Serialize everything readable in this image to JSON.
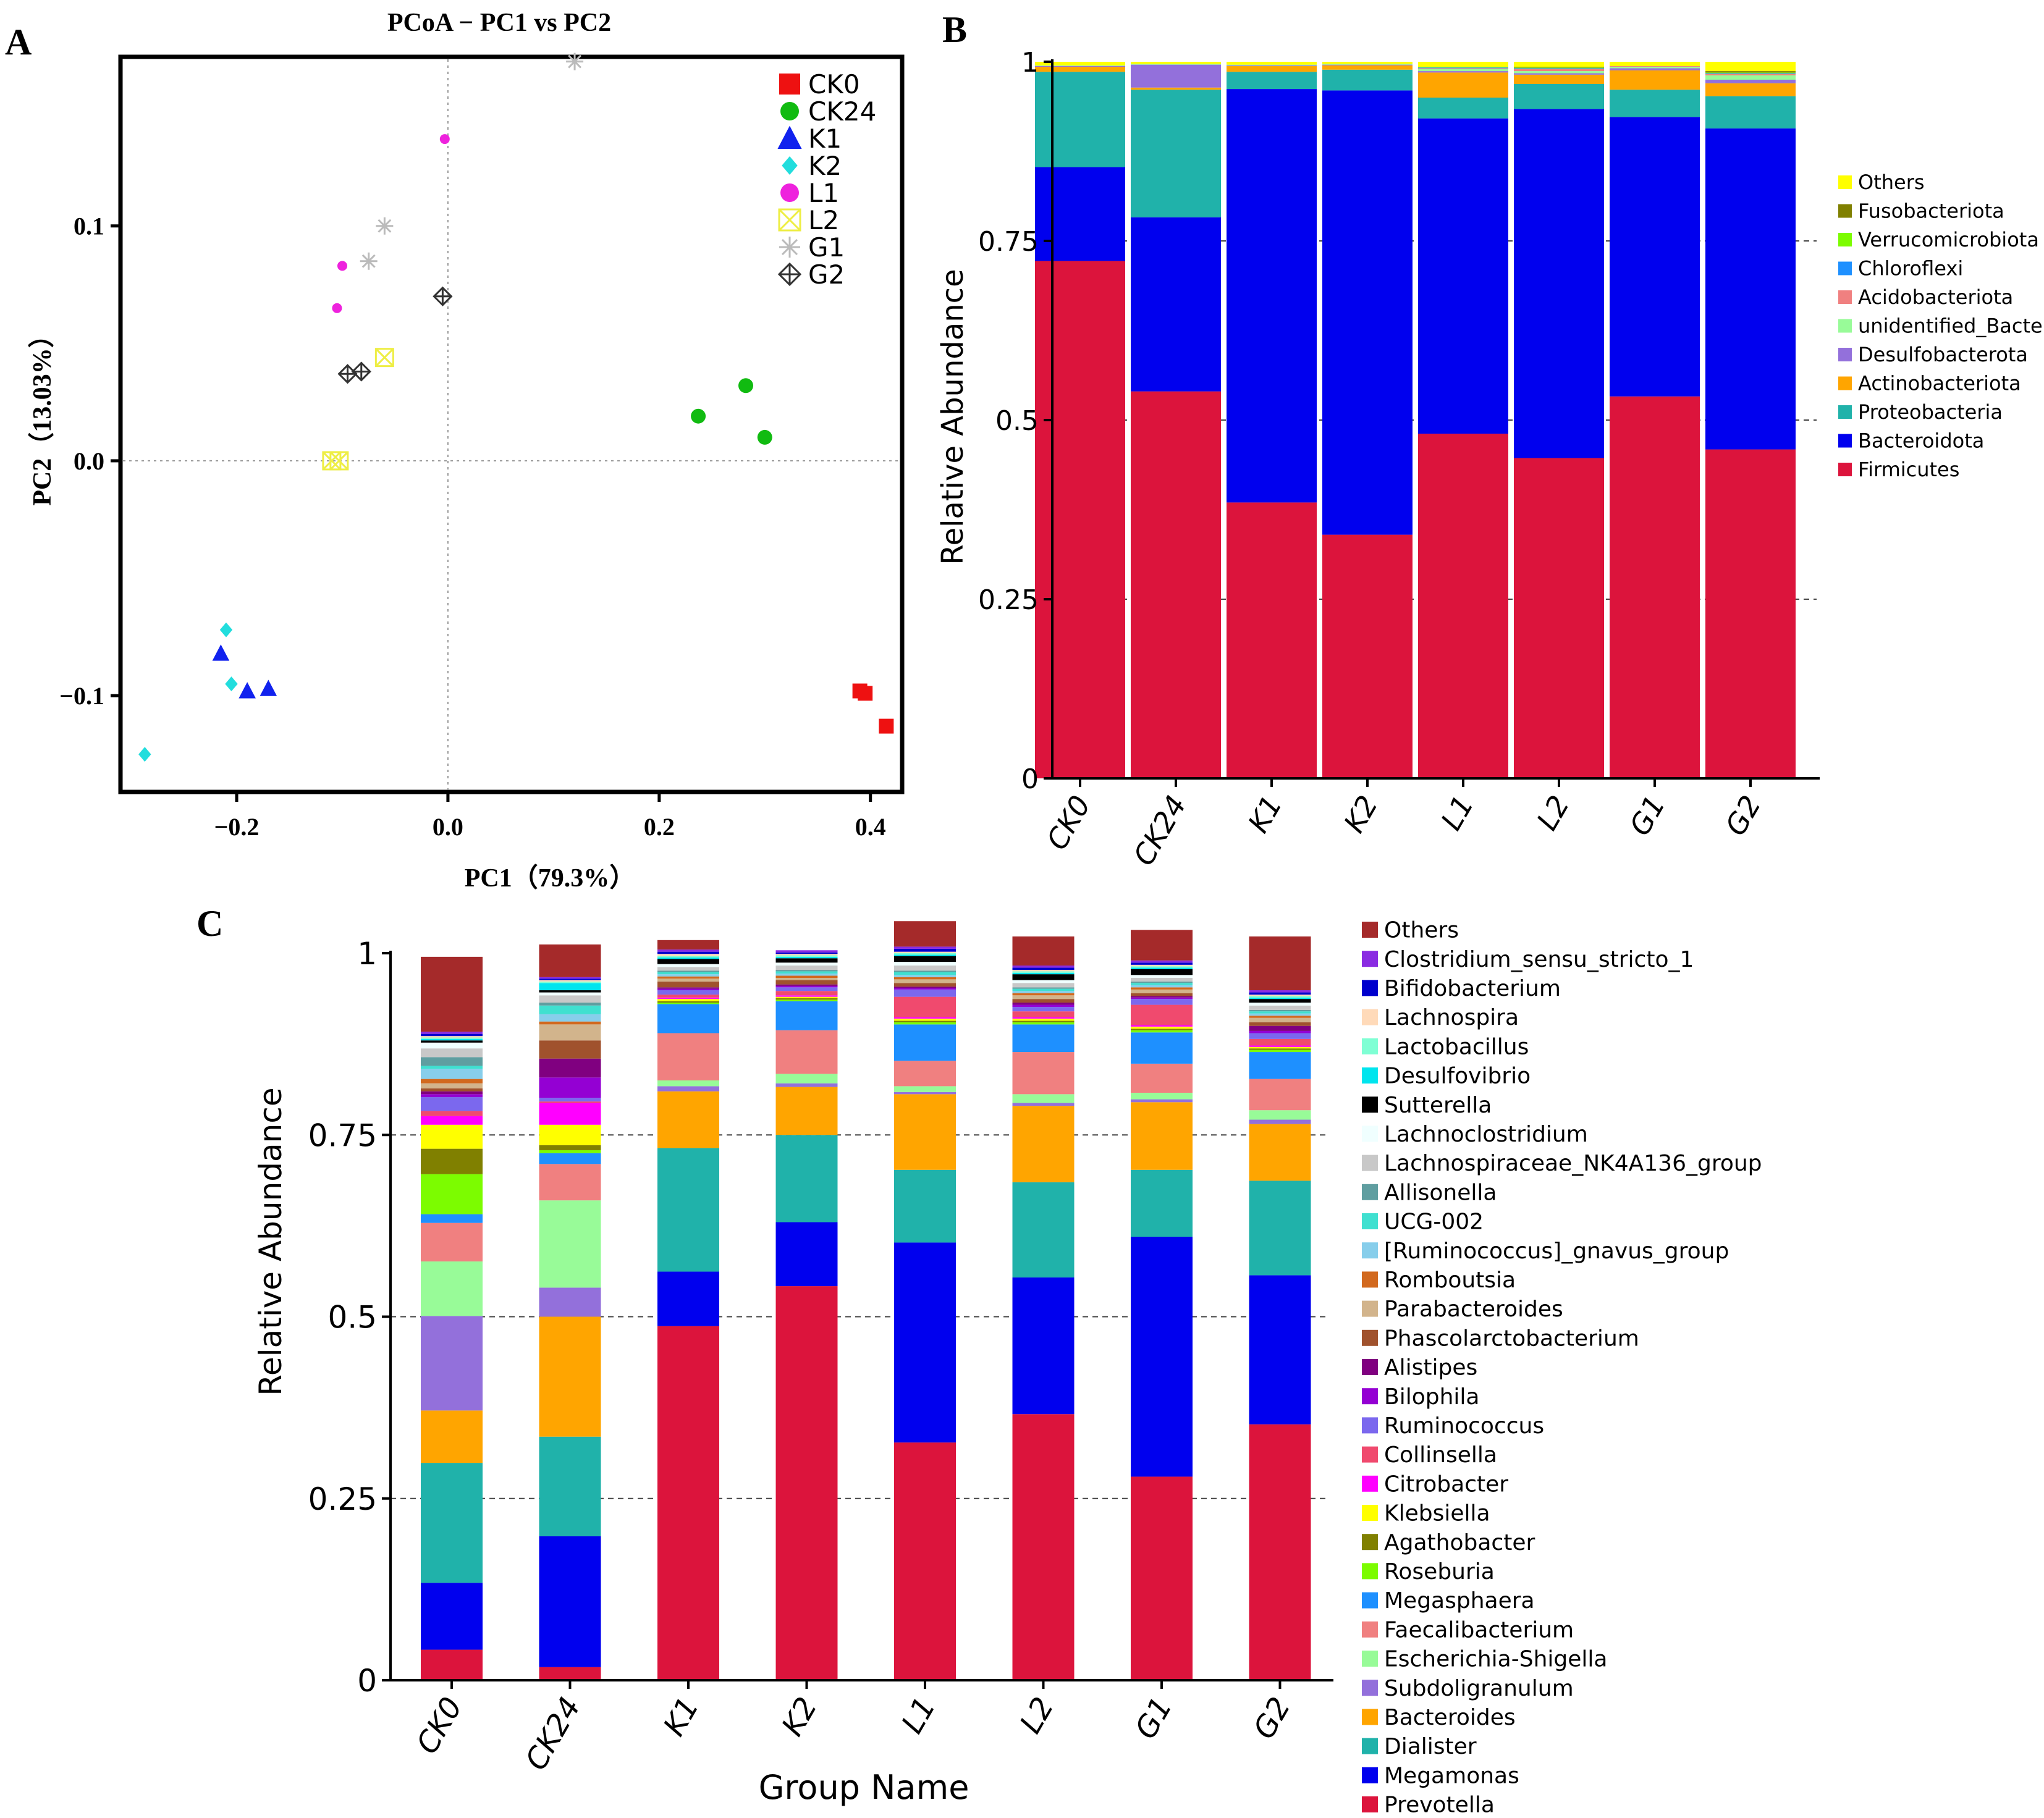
{
  "panels": {
    "a": "A",
    "b": "B",
    "c": "C"
  },
  "chart_data": [
    {
      "type": "scatter",
      "title": "PCoA − PC1 vs PC2",
      "xlabel": "PC1（79.3%）",
      "ylabel": "PC2（13.03%）",
      "xlim": [
        -0.31,
        0.43
      ],
      "ylim": [
        -0.141,
        0.172
      ],
      "xticks": [
        -0.2,
        0.0,
        0.2,
        0.4
      ],
      "xtick_labels": [
        "−0.2",
        "0.0",
        "0.2",
        "0.4"
      ],
      "yticks": [
        -0.1,
        0.0,
        0.1
      ],
      "ytick_labels": [
        "−0.1",
        "0.0",
        "0.1"
      ],
      "legend_position": "top-right",
      "series": [
        {
          "name": "CK0",
          "marker": "square",
          "color": "#ee1111",
          "points": [
            [
              0.39,
              -0.098
            ],
            [
              0.395,
              -0.099
            ],
            [
              0.415,
              -0.113
            ]
          ]
        },
        {
          "name": "CK24",
          "marker": "circle",
          "color": "#11bb11",
          "points": [
            [
              0.237,
              0.019
            ],
            [
              0.282,
              0.032
            ],
            [
              0.3,
              0.01
            ]
          ]
        },
        {
          "name": "K1",
          "marker": "triangle",
          "color": "#1122ee",
          "points": [
            [
              -0.215,
              -0.082
            ],
            [
              -0.19,
              -0.098
            ],
            [
              -0.17,
              -0.097
            ]
          ]
        },
        {
          "name": "K2",
          "marker": "diamond",
          "color": "#22dddd",
          "points": [
            [
              -0.21,
              -0.072
            ],
            [
              -0.205,
              -0.095
            ],
            [
              -0.287,
              -0.125
            ]
          ]
        },
        {
          "name": "L1",
          "marker": "circle",
          "color": "#ee22dd",
          "points": [
            [
              -0.003,
              0.137
            ],
            [
              -0.1,
              0.083
            ],
            [
              -0.105,
              0.065
            ]
          ]
        },
        {
          "name": "L2",
          "marker": "boxx",
          "color": "#eeee44",
          "points": [
            [
              -0.06,
              0.044
            ],
            [
              -0.11,
              0.0
            ],
            [
              -0.103,
              0.0
            ]
          ]
        },
        {
          "name": "G1",
          "marker": "star",
          "color": "#bbbbbb",
          "points": [
            [
              0.12,
              0.17
            ],
            [
              -0.06,
              0.1
            ],
            [
              -0.075,
              0.085
            ]
          ]
        },
        {
          "name": "G2",
          "marker": "diamondplus",
          "color": "#333333",
          "points": [
            [
              -0.005,
              0.07
            ],
            [
              -0.095,
              0.037
            ],
            [
              -0.082,
              0.038
            ]
          ]
        }
      ]
    },
    {
      "type": "bar",
      "stacked": true,
      "ylabel": "Relative Abundance",
      "ylim": [
        0,
        1
      ],
      "yticks": [
        0,
        0.25,
        0.5,
        0.75,
        1
      ],
      "ytick_labels": [
        "0",
        "0.25",
        "0.5",
        "0.75",
        "1"
      ],
      "categories": [
        "CK0",
        "CK24",
        "K1",
        "K2",
        "L1",
        "L2",
        "G1",
        "G2"
      ],
      "series": [
        {
          "name": "Firmicutes",
          "color": "#dc143c",
          "values": [
            0.722,
            0.54,
            0.385,
            0.34,
            0.481,
            0.447,
            0.533,
            0.459
          ]
        },
        {
          "name": "Bacteroidota",
          "color": "#0000ee",
          "values": [
            0.131,
            0.243,
            0.577,
            0.62,
            0.44,
            0.487,
            0.39,
            0.448
          ]
        },
        {
          "name": "Proteobacteria",
          "color": "#20b2aa",
          "values": [
            0.133,
            0.178,
            0.024,
            0.029,
            0.029,
            0.035,
            0.038,
            0.045
          ]
        },
        {
          "name": "Actinobacteriota",
          "color": "#ffa500",
          "values": [
            0.007,
            0.003,
            0.008,
            0.006,
            0.035,
            0.013,
            0.027,
            0.018
          ]
        },
        {
          "name": "Desulfobacterota",
          "color": "#9370db",
          "values": [
            0.001,
            0.032,
            0.001,
            0.001,
            0.002,
            0.002,
            0.003,
            0.005
          ]
        },
        {
          "name": "unidentified_Bacteria",
          "color": "#98fb98",
          "values": [
            0.001,
            0.001,
            0.001,
            0.001,
            0.003,
            0.003,
            0.002,
            0.006
          ]
        },
        {
          "name": "Acidobacteriota",
          "color": "#f08080",
          "values": [
            0.0,
            0.0,
            0.0,
            0.0,
            0.001,
            0.003,
            0.001,
            0.002
          ]
        },
        {
          "name": "Chloroflexi",
          "color": "#1e90ff",
          "values": [
            0.0,
            0.0,
            0.0,
            0.0,
            0.001,
            0.001,
            0.0,
            0.001
          ]
        },
        {
          "name": "Verrucomicrobiota",
          "color": "#7cfc00",
          "values": [
            0.0,
            0.0,
            0.0,
            0.0,
            0.001,
            0.001,
            0.0,
            0.001
          ]
        },
        {
          "name": "Fusobacteriota",
          "color": "#808000",
          "values": [
            0.0,
            0.0,
            0.0,
            0.0,
            0.0,
            0.001,
            0.0,
            0.002
          ]
        },
        {
          "name": "Others",
          "color": "#ffff00",
          "values": [
            0.005,
            0.003,
            0.004,
            0.003,
            0.007,
            0.007,
            0.006,
            0.013
          ]
        }
      ]
    },
    {
      "type": "bar",
      "stacked": true,
      "ylabel": "Relative Abundance",
      "xlabel": "Group Name",
      "ylim": [
        0,
        1
      ],
      "yticks": [
        0,
        0.25,
        0.5,
        0.75,
        1
      ],
      "ytick_labels": [
        "0",
        "0.25",
        "0.5",
        "0.75",
        "1"
      ],
      "categories": [
        "CK0",
        "CK24",
        "K1",
        "K2",
        "L1",
        "L2",
        "G1",
        "G2"
      ],
      "series": [
        {
          "name": "Prevotella",
          "color": "#dc143c",
          "values": [
            0.042,
            0.018,
            0.487,
            0.542,
            0.327,
            0.366,
            0.28,
            0.352
          ]
        },
        {
          "name": "Megamonas",
          "color": "#0000ee",
          "values": [
            0.092,
            0.18,
            0.075,
            0.088,
            0.275,
            0.188,
            0.33,
            0.205
          ]
        },
        {
          "name": "Dialister",
          "color": "#20b2aa",
          "values": [
            0.165,
            0.137,
            0.17,
            0.12,
            0.1,
            0.131,
            0.092,
            0.13
          ]
        },
        {
          "name": "Bacteroides",
          "color": "#ffa500",
          "values": [
            0.072,
            0.165,
            0.078,
            0.066,
            0.104,
            0.105,
            0.093,
            0.078
          ]
        },
        {
          "name": "Subdoligranulum",
          "color": "#9370db",
          "values": [
            0.13,
            0.04,
            0.007,
            0.005,
            0.003,
            0.004,
            0.004,
            0.006
          ]
        },
        {
          "name": "Escherichia-Shigella",
          "color": "#98fb98",
          "values": [
            0.075,
            0.12,
            0.008,
            0.013,
            0.008,
            0.012,
            0.009,
            0.013
          ]
        },
        {
          "name": "Faecalibacterium",
          "color": "#f08080",
          "values": [
            0.053,
            0.05,
            0.065,
            0.06,
            0.035,
            0.058,
            0.04,
            0.043
          ]
        },
        {
          "name": "Megasphaera",
          "color": "#1e90ff",
          "values": [
            0.012,
            0.015,
            0.04,
            0.04,
            0.05,
            0.038,
            0.043,
            0.037
          ]
        },
        {
          "name": "Roseburia",
          "color": "#7cfc00",
          "values": [
            0.055,
            0.004,
            0.002,
            0.002,
            0.003,
            0.003,
            0.003,
            0.003
          ]
        },
        {
          "name": "Agathobacter",
          "color": "#808000",
          "values": [
            0.035,
            0.007,
            0.002,
            0.002,
            0.002,
            0.002,
            0.002,
            0.002
          ]
        },
        {
          "name": "Klebsiella",
          "color": "#ffff00",
          "values": [
            0.033,
            0.028,
            0.003,
            0.002,
            0.003,
            0.003,
            0.003,
            0.002
          ]
        },
        {
          "name": "Citrobacter",
          "color": "#ff00ff",
          "values": [
            0.012,
            0.03,
            0.002,
            0.002,
            0.002,
            0.002,
            0.002,
            0.002
          ]
        },
        {
          "name": "Collinsella",
          "color": "#f04a6e",
          "values": [
            0.007,
            0.002,
            0.004,
            0.006,
            0.028,
            0.008,
            0.028,
            0.009
          ]
        },
        {
          "name": "Ruminococcus",
          "color": "#7b68ee",
          "values": [
            0.019,
            0.005,
            0.006,
            0.005,
            0.01,
            0.006,
            0.008,
            0.008
          ]
        },
        {
          "name": "Bilophila",
          "color": "#9400d3",
          "values": [
            0.004,
            0.028,
            0.002,
            0.002,
            0.002,
            0.003,
            0.002,
            0.003
          ]
        },
        {
          "name": "Alistipes",
          "color": "#800080",
          "values": [
            0.004,
            0.026,
            0.002,
            0.002,
            0.002,
            0.003,
            0.002,
            0.007
          ]
        },
        {
          "name": "Phascolarctobacterium",
          "color": "#a0522d",
          "values": [
            0.004,
            0.025,
            0.008,
            0.006,
            0.005,
            0.005,
            0.004,
            0.005
          ]
        },
        {
          "name": "Parabacteroides",
          "color": "#d2b48c",
          "values": [
            0.007,
            0.022,
            0.004,
            0.003,
            0.005,
            0.005,
            0.005,
            0.006
          ]
        },
        {
          "name": "Romboutsia",
          "color": "#d2691e",
          "values": [
            0.006,
            0.004,
            0.003,
            0.003,
            0.003,
            0.003,
            0.003,
            0.003
          ]
        },
        {
          "name": "[Ruminococcus]_gnavus_group",
          "color": "#87ceeb",
          "values": [
            0.014,
            0.01,
            0.003,
            0.003,
            0.003,
            0.003,
            0.003,
            0.003
          ]
        },
        {
          "name": "UCG-002",
          "color": "#40e0d0",
          "values": [
            0.004,
            0.012,
            0.003,
            0.003,
            0.004,
            0.003,
            0.003,
            0.003
          ]
        },
        {
          "name": "Allisonella",
          "color": "#5f9ea0",
          "values": [
            0.012,
            0.004,
            0.002,
            0.002,
            0.002,
            0.002,
            0.002,
            0.002
          ]
        },
        {
          "name": "Lachnospiraceae_NK4A136_group",
          "color": "#c8c8c8",
          "values": [
            0.012,
            0.01,
            0.005,
            0.006,
            0.007,
            0.006,
            0.005,
            0.006
          ]
        },
        {
          "name": "Lachnoclostridium",
          "color": "#f0ffff",
          "values": [
            0.008,
            0.004,
            0.004,
            0.004,
            0.005,
            0.004,
            0.004,
            0.004
          ]
        },
        {
          "name": "Sutterella",
          "color": "#000000",
          "values": [
            0.003,
            0.003,
            0.007,
            0.006,
            0.008,
            0.008,
            0.008,
            0.005
          ]
        },
        {
          "name": "Desulfovibrio",
          "color": "#00e5ee",
          "values": [
            0.002,
            0.01,
            0.002,
            0.002,
            0.002,
            0.002,
            0.002,
            0.002
          ]
        },
        {
          "name": "Lactobacillus",
          "color": "#7fffd4",
          "values": [
            0.002,
            0.002,
            0.002,
            0.002,
            0.002,
            0.002,
            0.002,
            0.002
          ]
        },
        {
          "name": "Lachnospira",
          "color": "#ffdab9",
          "values": [
            0.002,
            0.002,
            0.003,
            0.002,
            0.002,
            0.002,
            0.002,
            0.002
          ]
        },
        {
          "name": "Bifidobacterium",
          "color": "#0000cd",
          "values": [
            0.003,
            0.002,
            0.003,
            0.002,
            0.004,
            0.003,
            0.003,
            0.003
          ]
        },
        {
          "name": "Clostridium_sensu_stricto_1",
          "color": "#8a2be2",
          "values": [
            0.003,
            0.002,
            0.003,
            0.003,
            0.003,
            0.003,
            0.003,
            0.003
          ]
        },
        {
          "name": "Others",
          "color": "#a52a2a",
          "values": [
            0.103,
            0.045,
            0.013,
            0.0,
            0.035,
            0.04,
            0.042,
            0.074
          ]
        }
      ]
    }
  ]
}
